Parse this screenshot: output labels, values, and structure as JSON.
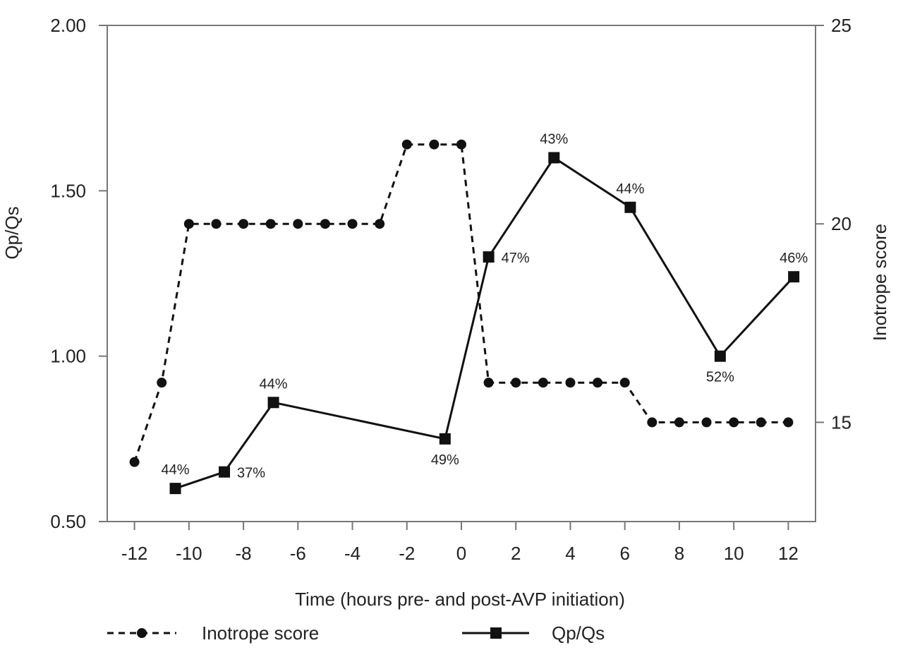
{
  "chart_data": {
    "type": "line",
    "xlabel": "Time (hours pre- and post-AVP initiation)",
    "ylabel": "Qp/Qs",
    "y2label": "Inotrope score",
    "xlim": [
      -13,
      13
    ],
    "ylim": [
      0.5,
      2.0
    ],
    "y2lim": [
      12.5,
      25
    ],
    "x_ticks": [
      -12,
      -10,
      -8,
      -6,
      -4,
      -2,
      0,
      2,
      4,
      6,
      8,
      10,
      12
    ],
    "x_tick_labels": [
      "-12",
      "-10",
      "-8",
      "-6",
      "-4",
      "-2",
      "0",
      "2",
      "4",
      "6",
      "8",
      "10",
      "12"
    ],
    "y_ticks": [
      0.5,
      1.0,
      1.5,
      2.0
    ],
    "y_tick_labels": [
      "0.50",
      "1.00",
      "1.50",
      "2.00"
    ],
    "y2_ticks": [
      15,
      20,
      25
    ],
    "y2_tick_labels": [
      "15",
      "20",
      "25"
    ],
    "grid": false,
    "legend_position": "bottom",
    "series": [
      {
        "name": "Inotrope score",
        "axis": "right",
        "style": "dashed",
        "marker": "circle",
        "color": "#111111",
        "x": [
          -12,
          -11,
          -10,
          -9,
          -8,
          -7,
          -6,
          -5,
          -4,
          -3,
          -2,
          -1,
          0,
          1,
          2,
          3,
          4,
          5,
          6,
          7,
          8,
          9,
          10,
          11,
          12
        ],
        "y": [
          14.0,
          16.0,
          20.0,
          20.0,
          20.0,
          20.0,
          20.0,
          20.0,
          20.0,
          20.0,
          22.0,
          22.0,
          22.0,
          16.0,
          16.0,
          16.0,
          16.0,
          16.0,
          16.0,
          15.0,
          15.0,
          15.0,
          15.0,
          15.0,
          15.0
        ]
      },
      {
        "name": "Qp/Qs",
        "axis": "left",
        "style": "solid",
        "marker": "square",
        "color": "#111111",
        "x": [
          -10.5,
          -8.7,
          -6.9,
          -0.6,
          1.0,
          3.4,
          6.2,
          9.5,
          12.2
        ],
        "y": [
          0.6,
          0.65,
          0.86,
          0.75,
          1.3,
          1.6,
          1.45,
          1.0,
          1.24
        ],
        "labels": [
          "44%",
          "37%",
          "44%",
          "49%",
          "47%",
          "43%",
          "44%",
          "52%",
          "46%"
        ],
        "label_positions": [
          "above",
          "right",
          "above",
          "below",
          "right",
          "above",
          "above",
          "below",
          "above"
        ]
      }
    ]
  }
}
